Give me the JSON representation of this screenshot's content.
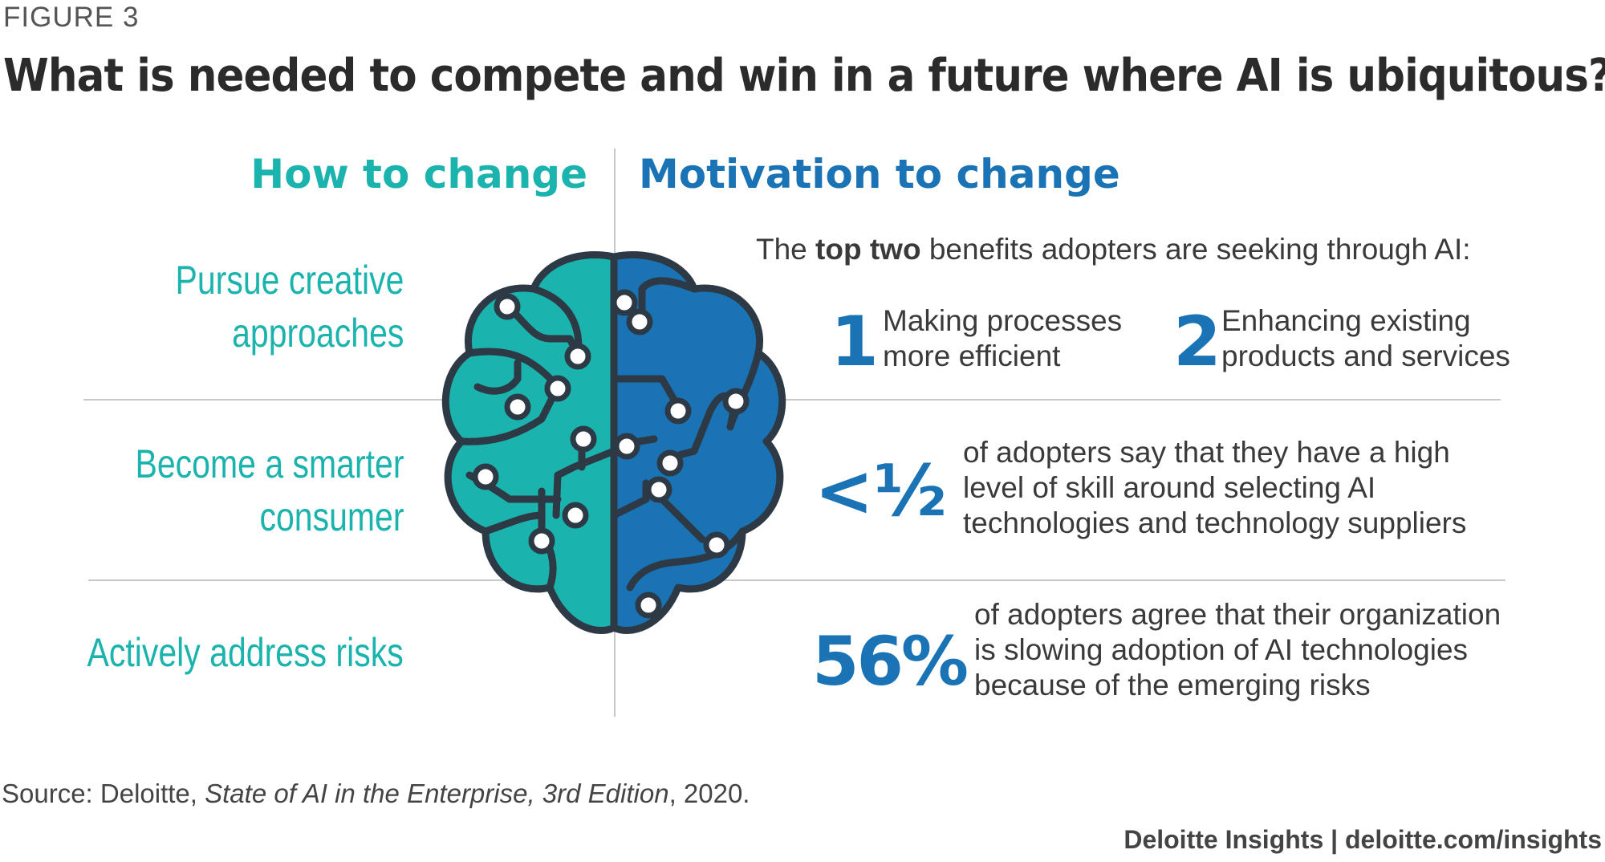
{
  "figure_label": "FIGURE 3",
  "title": "What is needed to compete and win in a future where AI is ubiquitous?",
  "how_heading": "How to change",
  "motivation_heading": "Motivation to change",
  "how_items": [
    "Pursue creative",
    "approaches",
    "Become a smarter",
    "consumer",
    "Actively address risks"
  ],
  "intro": {
    "before": "The ",
    "bold": "top two",
    "after": " benefits adopters are seeking through AI:"
  },
  "benefit_1": {
    "num": "1",
    "line1": "Making processes",
    "line2": "more efficient"
  },
  "benefit_2": {
    "num": "2",
    "line1": "Enhancing existing",
    "line2": "products and services"
  },
  "stat_half": {
    "value": "<½",
    "line1": "of adopters say that they have a high",
    "line2": "level of skill around selecting AI",
    "line3": "technologies and technology suppliers"
  },
  "stat_56": {
    "value": "56%",
    "line1": "of adopters agree that their organization",
    "line2": "is slowing adoption of AI technologies",
    "line3": "because of the emerging risks"
  },
  "source": {
    "prefix": "Source: Deloitte, ",
    "italic": "State of AI in the Enterprise, 3rd Edition",
    "suffix": ", 2020."
  },
  "footer": "Deloitte Insights | deloitte.com/insights",
  "colors": {
    "teal": "#1bb3ad",
    "blue": "#1a73b5",
    "outline": "#2d3a45"
  }
}
